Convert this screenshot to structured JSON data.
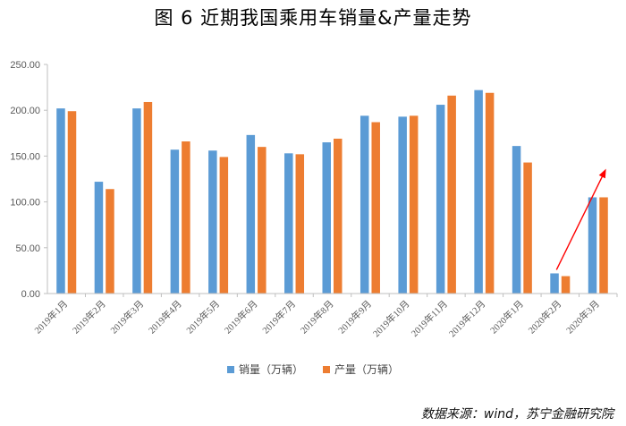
{
  "title": "图 6  近期我国乘用车销量&产量走势",
  "source": "数据来源：wind，苏宁金融研究院",
  "chart_data": {
    "type": "bar",
    "title": "图 6  近期我国乘用车销量&产量走势",
    "categories": [
      "2019年1月",
      "2019年2月",
      "2019年3月",
      "2019年4月",
      "2019年5月",
      "2019年6月",
      "2019年7月",
      "2019年8月",
      "2019年9月",
      "2019年10月",
      "2019年11月",
      "2019年12月",
      "2020年1月",
      "2020年2月",
      "2020年3月"
    ],
    "series": [
      {
        "name": "销量（万辆）",
        "color": "#5b9bd5",
        "values": [
          202,
          122,
          202,
          157,
          156,
          173,
          153,
          165,
          194,
          193,
          206,
          222,
          161,
          22,
          105
        ]
      },
      {
        "name": "产量（万辆）",
        "color": "#ed7d31",
        "values": [
          199,
          114,
          209,
          166,
          149,
          160,
          152,
          169,
          187,
          194,
          216,
          219,
          143,
          19,
          105
        ]
      }
    ],
    "ylim": [
      0,
      250
    ],
    "yticks": [
      "0.00",
      "50.00",
      "100.00",
      "150.00",
      "200.00",
      "250.00"
    ],
    "grid": false,
    "legend": "bottom",
    "annotation": {
      "type": "arrow",
      "color": "#ff0000",
      "from_category": "2020年2月",
      "to_category": "2020年3月"
    }
  }
}
